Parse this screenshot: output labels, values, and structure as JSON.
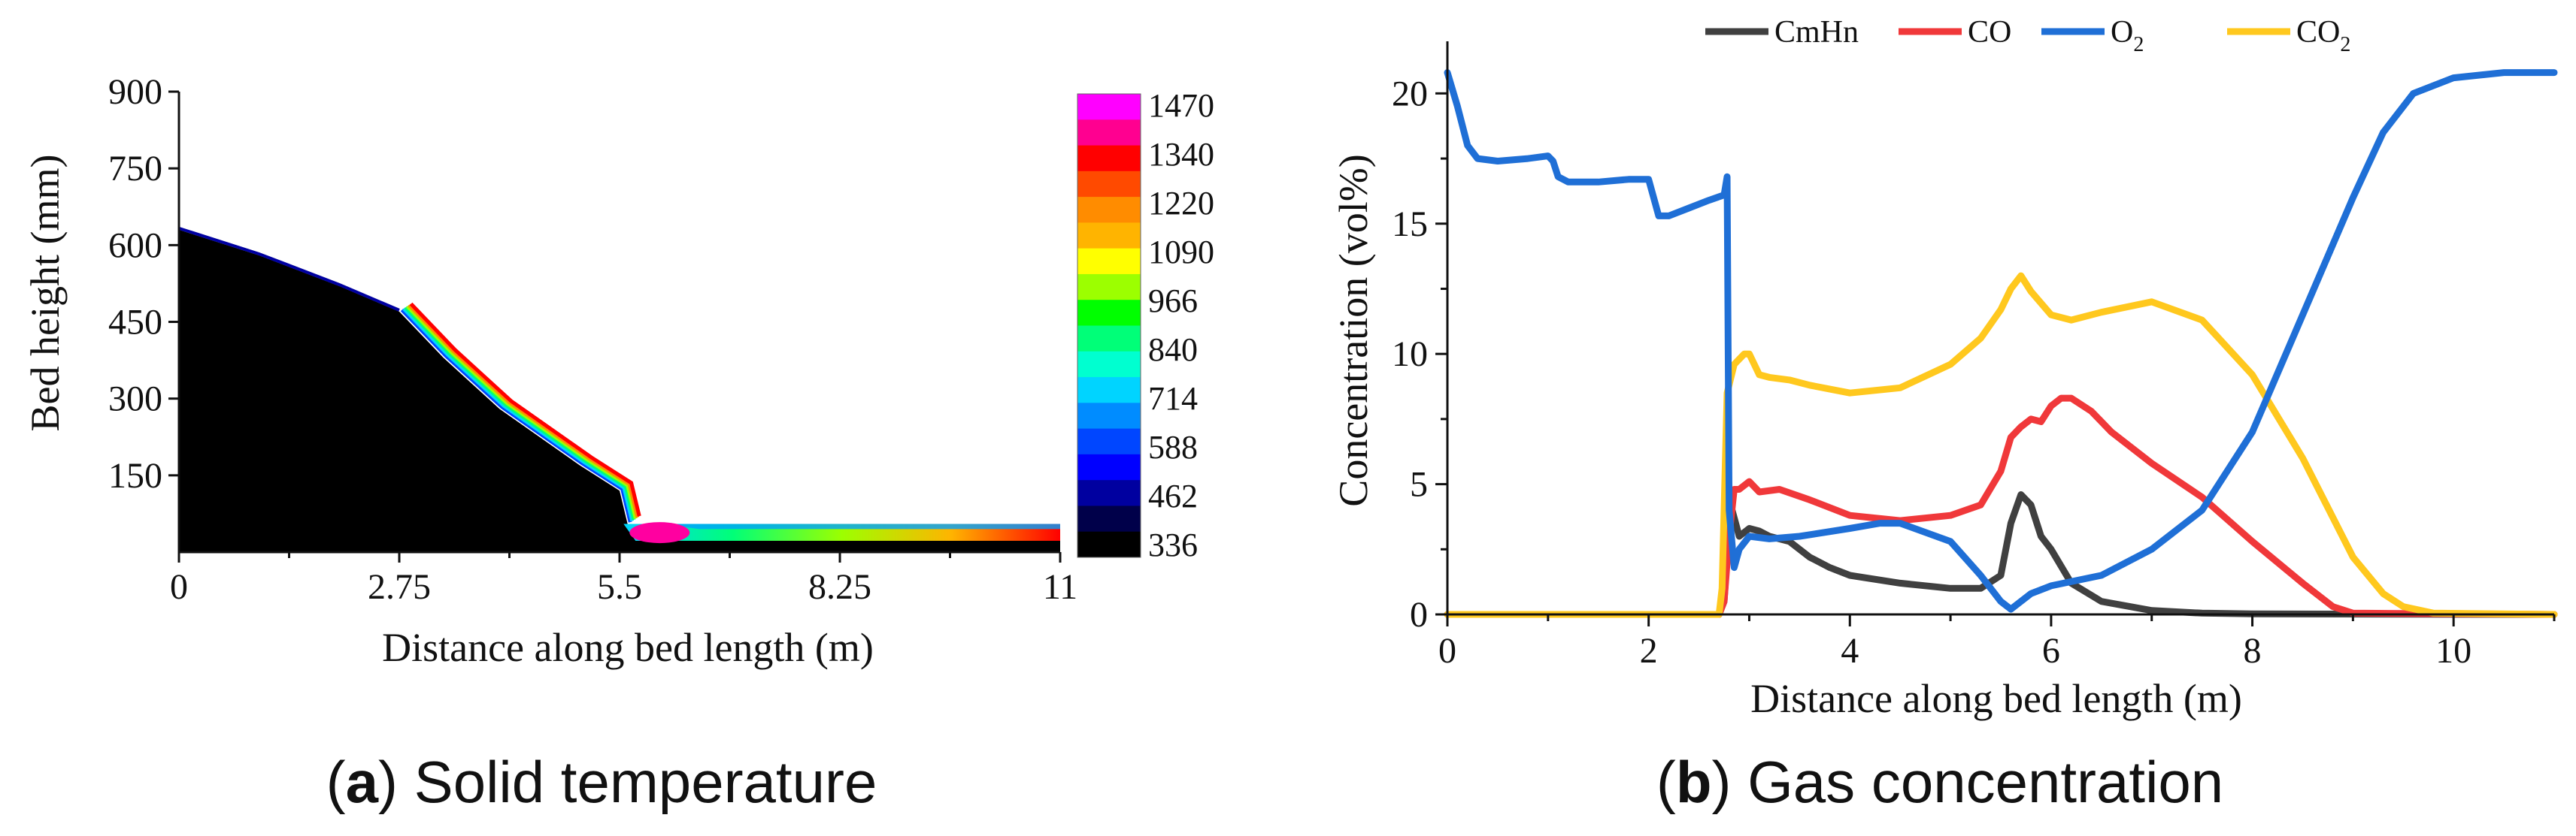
{
  "chart_data": [
    {
      "type": "heatmap",
      "panel_label": "a",
      "caption": "Solid temperature",
      "xlabel": "Distance along bed length (m)",
      "ylabel": "Bed height (mm)",
      "xlim": [
        0,
        11
      ],
      "ylim": [
        0,
        900
      ],
      "xticks": [
        "0",
        "2.75",
        "5.5",
        "8.25",
        "11"
      ],
      "yticks": [
        "150",
        "300",
        "450",
        "600",
        "750",
        "900"
      ],
      "colorbar": {
        "labels": [
          "1470",
          "1340",
          "1220",
          "1090",
          "966",
          "840",
          "714",
          "588",
          "462",
          "336"
        ],
        "colors": [
          "#ff00ff",
          "#ff0090",
          "#ff0000",
          "#ff4a00",
          "#ff8c00",
          "#ffb400",
          "#ffff00",
          "#9cff00",
          "#00ff00",
          "#00ff78",
          "#00ffd0",
          "#00d4ff",
          "#008cff",
          "#0046ff",
          "#0000ff",
          "#0000a0",
          "#00004a",
          "#000000"
        ]
      },
      "bed_top_profile": {
        "x": [
          0,
          0.2,
          1,
          2,
          2.75,
          3.3,
          4,
          5,
          5.5,
          5.6,
          11
        ],
        "y": [
          630,
          620,
          580,
          520,
          470,
          380,
          280,
          170,
          120,
          55,
          55
        ]
      }
    },
    {
      "type": "line",
      "panel_label": "b",
      "caption": "Gas concentration",
      "xlabel": "Distance along bed length (m)",
      "ylabel": "Concentration (vol%)",
      "xlim": [
        0,
        11
      ],
      "ylim": [
        0,
        22
      ],
      "xticks": [
        0,
        2,
        4,
        6,
        8,
        10
      ],
      "yticks": [
        0,
        5,
        10,
        15,
        20
      ],
      "legend_position": "top",
      "series": [
        {
          "name": "CmHn",
          "label_main": "CmHn",
          "label_sub": "",
          "color": "#404040",
          "x": [
            0,
            2.7,
            2.75,
            2.8,
            2.83,
            2.9,
            3.0,
            3.1,
            3.2,
            3.4,
            3.6,
            3.8,
            4.0,
            4.5,
            5.0,
            5.3,
            5.5,
            5.6,
            5.7,
            5.8,
            5.9,
            6.0,
            6.2,
            6.5,
            7.0,
            7.5,
            8.0,
            11
          ],
          "y": [
            0,
            0,
            0.5,
            3.5,
            4.0,
            3.0,
            3.3,
            3.2,
            3.0,
            2.8,
            2.2,
            1.8,
            1.5,
            1.2,
            1.0,
            1.0,
            1.5,
            3.5,
            4.6,
            4.2,
            3.0,
            2.5,
            1.2,
            0.5,
            0.15,
            0.05,
            0.02,
            0
          ]
        },
        {
          "name": "CO",
          "label_main": "CO",
          "label_sub": "",
          "color": "#f0383a",
          "x": [
            0,
            2.7,
            2.75,
            2.8,
            2.85,
            2.9,
            3.0,
            3.1,
            3.3,
            3.6,
            4.0,
            4.5,
            5.0,
            5.3,
            5.5,
            5.6,
            5.7,
            5.8,
            5.9,
            6.0,
            6.1,
            6.2,
            6.4,
            6.6,
            7.0,
            7.5,
            8.0,
            8.5,
            8.8,
            9.0,
            11
          ],
          "y": [
            0,
            0,
            0.5,
            3.0,
            4.8,
            4.8,
            5.1,
            4.7,
            4.8,
            4.4,
            3.8,
            3.6,
            3.8,
            4.2,
            5.5,
            6.8,
            7.2,
            7.5,
            7.4,
            8.0,
            8.3,
            8.3,
            7.8,
            7.0,
            5.8,
            4.5,
            2.8,
            1.2,
            0.3,
            0.05,
            0
          ]
        },
        {
          "name": "O2",
          "label_main": "O",
          "label_sub": "2",
          "color": "#1f6fd6",
          "x": [
            0,
            0.1,
            0.2,
            0.3,
            0.5,
            0.8,
            1.0,
            1.05,
            1.1,
            1.2,
            1.5,
            1.8,
            2.0,
            2.05,
            2.1,
            2.2,
            2.4,
            2.6,
            2.75,
            2.78,
            2.8,
            2.85,
            2.9,
            3.0,
            3.2,
            3.5,
            4.0,
            4.3,
            4.5,
            5.0,
            5.3,
            5.5,
            5.6,
            5.8,
            6.0,
            6.5,
            7.0,
            7.5,
            8.0,
            8.5,
            9.0,
            9.3,
            9.6,
            10.0,
            10.5,
            11
          ],
          "y": [
            20.8,
            19.5,
            18.0,
            17.5,
            17.4,
            17.5,
            17.6,
            17.4,
            16.8,
            16.6,
            16.6,
            16.7,
            16.7,
            16.0,
            15.3,
            15.3,
            15.6,
            15.9,
            16.1,
            16.8,
            4.0,
            1.8,
            2.5,
            3.0,
            2.9,
            3.0,
            3.3,
            3.5,
            3.5,
            2.8,
            1.5,
            0.5,
            0.2,
            0.8,
            1.1,
            1.5,
            2.5,
            4.0,
            7.0,
            11.5,
            16.0,
            18.5,
            20.0,
            20.6,
            20.8,
            20.8
          ]
        },
        {
          "name": "CO2",
          "label_main": "CO",
          "label_sub": "2",
          "color": "#ffc81e",
          "x": [
            0,
            2.7,
            2.73,
            2.78,
            2.85,
            2.95,
            3.0,
            3.1,
            3.2,
            3.4,
            3.6,
            4.0,
            4.5,
            5.0,
            5.3,
            5.5,
            5.6,
            5.7,
            5.8,
            6.0,
            6.2,
            6.5,
            7.0,
            7.5,
            8.0,
            8.5,
            9.0,
            9.3,
            9.5,
            9.8,
            11
          ],
          "y": [
            0,
            0,
            1.0,
            8.5,
            9.6,
            10.0,
            10.0,
            9.2,
            9.1,
            9.0,
            8.8,
            8.5,
            8.7,
            9.6,
            10.6,
            11.7,
            12.5,
            13.0,
            12.4,
            11.5,
            11.3,
            11.6,
            12.0,
            11.3,
            9.2,
            6.0,
            2.2,
            0.8,
            0.3,
            0.05,
            0
          ]
        }
      ]
    }
  ]
}
